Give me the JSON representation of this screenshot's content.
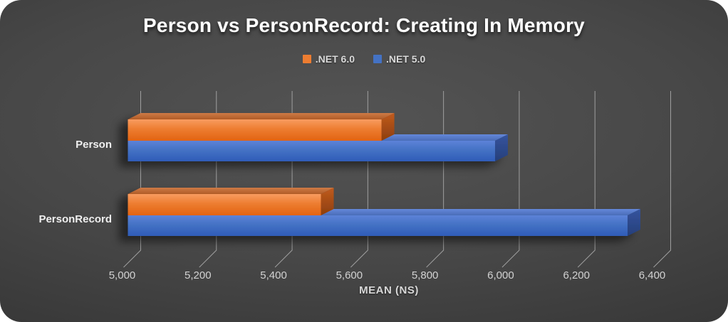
{
  "chart_data": {
    "type": "bar",
    "orientation": "horizontal",
    "style": "3d",
    "title": "Person vs PersonRecord: Creating In Memory",
    "xlabel": "MEAN (NS)",
    "categories": [
      "Person",
      "PersonRecord"
    ],
    "series": [
      {
        "name": ".NET 6.0",
        "color": "#ED7D31",
        "values": [
          5670,
          5510
        ]
      },
      {
        "name": ".NET 5.0",
        "color": "#4472C4",
        "values": [
          5970,
          6320
        ]
      }
    ],
    "xlim": [
      5000,
      6400
    ],
    "xtick_step": 200,
    "xtick_labels": [
      "5,000",
      "5,200",
      "5,400",
      "5,600",
      "5,800",
      "6,000",
      "6,200",
      "6,400"
    ],
    "grid": true,
    "legend_position": "top-center",
    "gridline_color": "#a3a3a3",
    "tick_label_color": "#d2d2d2",
    "category_label_color": "#efefef"
  }
}
